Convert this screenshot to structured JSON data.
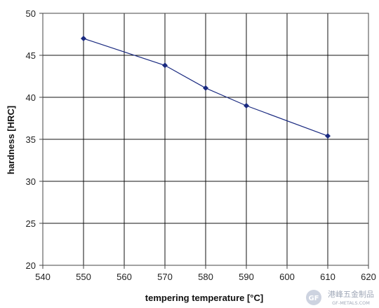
{
  "chart_data": {
    "type": "line",
    "xlabel": "tempering temperature [°C]",
    "ylabel": "hardness [HRC]",
    "xlim": [
      540,
      620
    ],
    "ylim": [
      20,
      50
    ],
    "x_ticks": [
      540,
      550,
      560,
      570,
      580,
      590,
      600,
      610,
      620
    ],
    "y_ticks": [
      20,
      25,
      30,
      35,
      40,
      45,
      50
    ],
    "grid": true,
    "legend": "none",
    "series": [
      {
        "color": "#1a2a80",
        "marker": "diamond",
        "x": [
          550,
          570,
          580,
          590,
          610
        ],
        "y": [
          47.0,
          43.8,
          41.1,
          39.0,
          35.4
        ]
      }
    ]
  },
  "watermark": {
    "text_cn": "港峰五金制品",
    "text_en": "GF-METALS.COM",
    "badge": "GF"
  }
}
